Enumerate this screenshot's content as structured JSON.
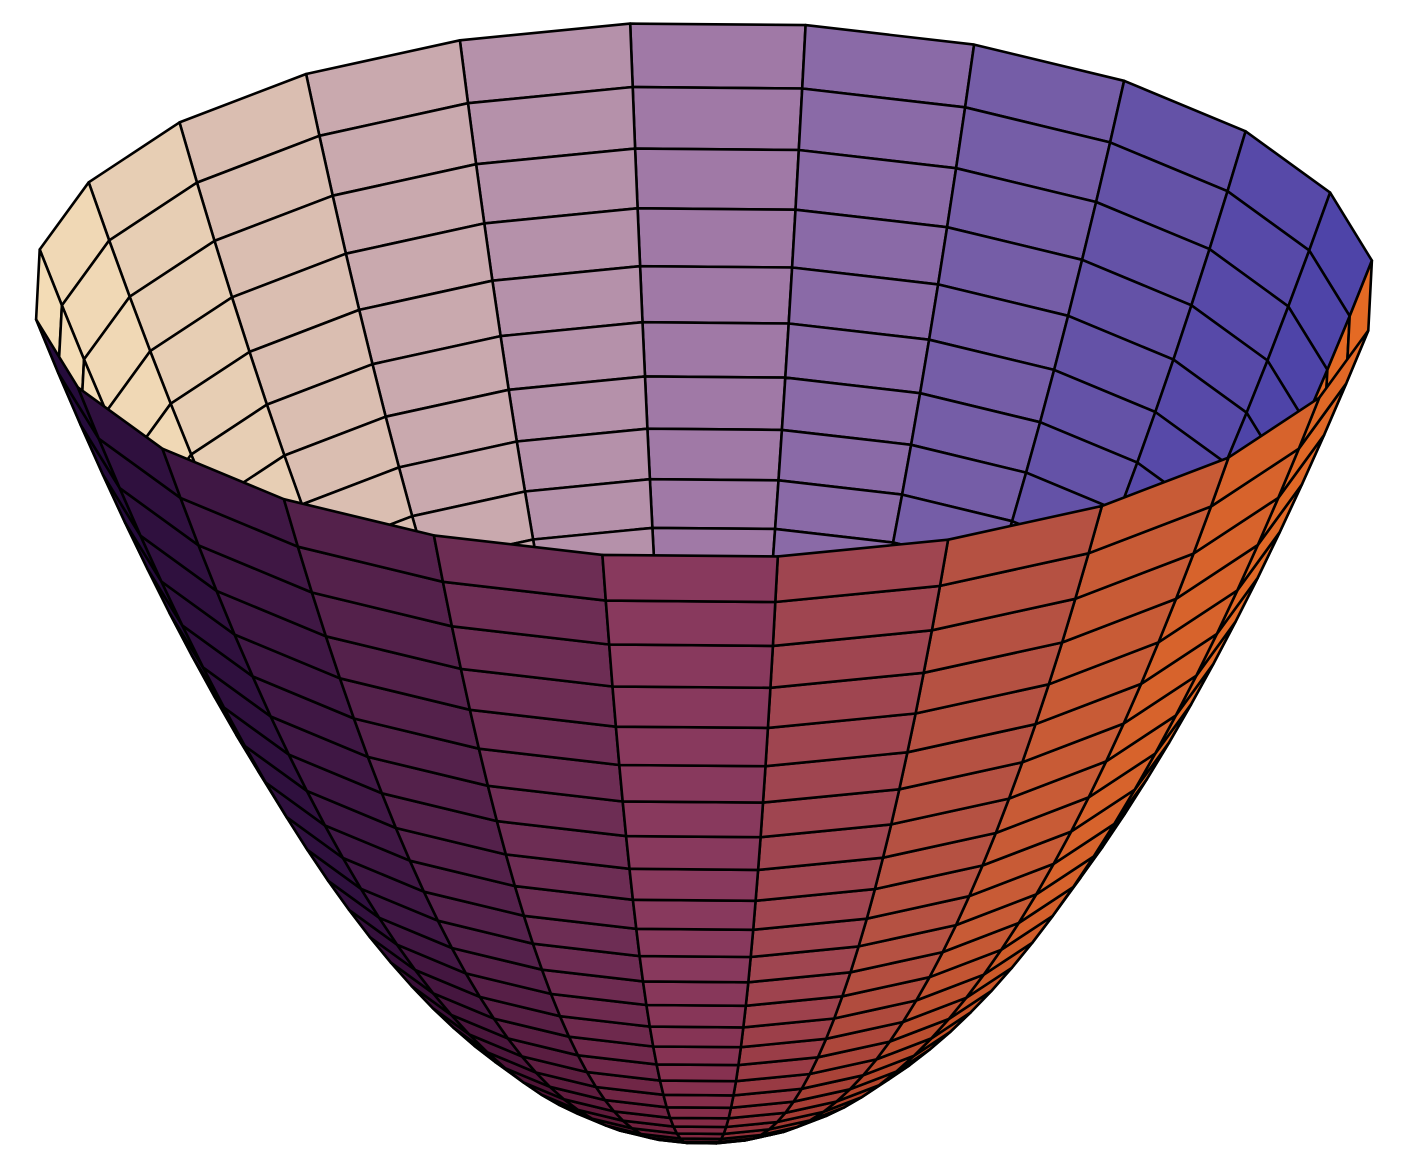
{
  "figure": {
    "type": "3d-surface-plot",
    "surface": "paraboloid",
    "mesh": "polar-grid",
    "outline_color": "#000000",
    "background_color": "#ffffff",
    "shading": "lit-colored-faces",
    "palette": {
      "inner_left": "#f3dcb6",
      "inner_mid": "#a27aa6",
      "inner_right": "#4c42a8",
      "outer_left": "#220a3a",
      "outer_mid": "#8a3a5e",
      "outer_right": "#e46a24",
      "bottom": "#7a0a10"
    }
  }
}
